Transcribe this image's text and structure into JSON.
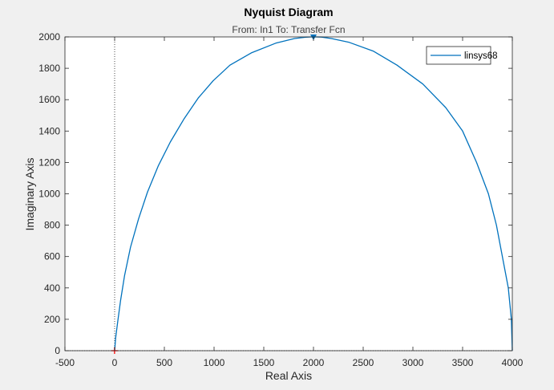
{
  "chart_data": {
    "type": "line",
    "title": "Nyquist Diagram",
    "subtitle": "From: In1  To: Transfer Fcn",
    "xlabel": "Real Axis",
    "ylabel": "Imaginary Axis",
    "xlim": [
      -500,
      4000
    ],
    "ylim": [
      0,
      2000
    ],
    "xticks": [
      -500,
      0,
      500,
      1000,
      1500,
      2000,
      2500,
      3000,
      3500,
      4000
    ],
    "yticks": [
      0,
      200,
      400,
      600,
      800,
      1000,
      1200,
      1400,
      1600,
      1800,
      2000
    ],
    "grid": false,
    "legend_position": "top-right",
    "series": [
      {
        "name": "linsys68",
        "color": "#0072bd",
        "x": [
          4000,
          3990,
          3960,
          3900,
          3840,
          3760,
          3640,
          3500,
          3330,
          3100,
          2840,
          2600,
          2360,
          2180,
          2080,
          2020,
          2000,
          1980,
          1920,
          1810,
          1620,
          1380,
          1160,
          990,
          840,
          700,
          560,
          440,
          330,
          240,
          160,
          100,
          60,
          30,
          10,
          0
        ],
        "y": [
          0,
          200,
          400,
          600,
          800,
          1000,
          1200,
          1400,
          1550,
          1700,
          1820,
          1910,
          1965,
          1990,
          1999,
          2000,
          2000,
          2000,
          1998,
          1990,
          1960,
          1900,
          1820,
          1720,
          1610,
          1480,
          1330,
          1180,
          1010,
          840,
          660,
          480,
          320,
          180,
          80,
          0
        ]
      }
    ],
    "critical_point": {
      "x": -1,
      "y": 0,
      "marker": "+",
      "color": "#ff0000"
    },
    "zero_axis_color": "#000000",
    "arrow_color": "#0072bd"
  }
}
